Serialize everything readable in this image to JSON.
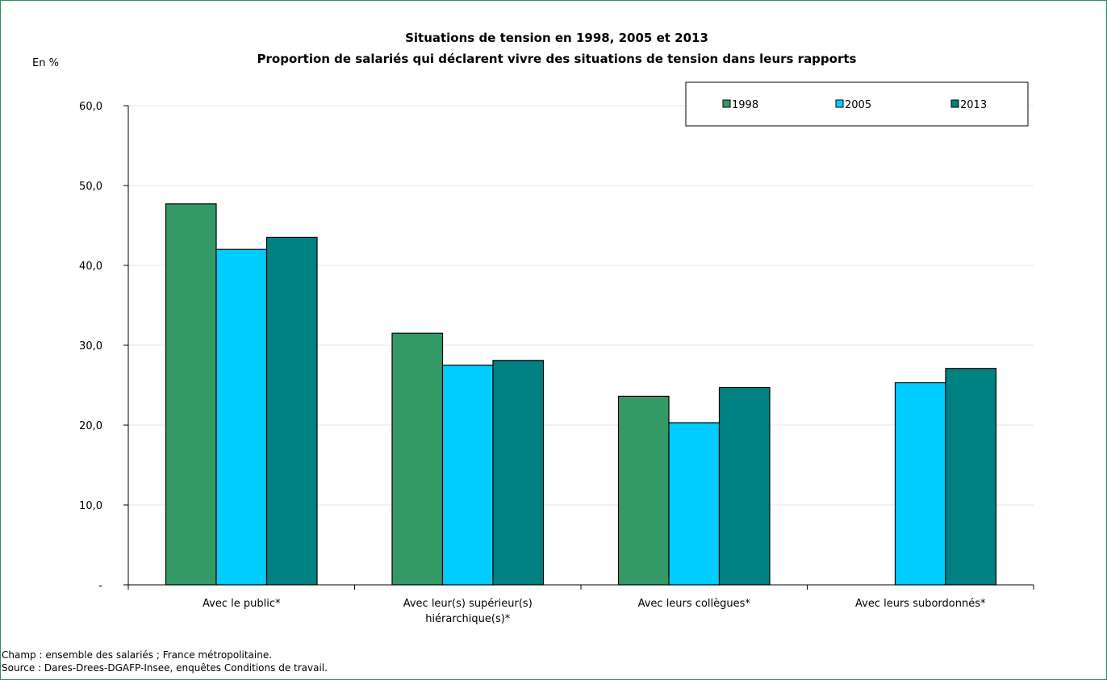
{
  "chart_data": {
    "type": "bar",
    "title": "Situations de tension en 1998, 2005 et 2013",
    "subtitle": "Proportion de salariés qui déclarent vivre des situations de tension dans leurs rapports",
    "ylabel": "En %",
    "ylim": [
      0,
      60
    ],
    "yticks": [
      {
        "value": 0,
        "label": "-"
      },
      {
        "value": 10,
        "label": "10,0"
      },
      {
        "value": 20,
        "label": "20,0"
      },
      {
        "value": 30,
        "label": "30,0"
      },
      {
        "value": 40,
        "label": "40,0"
      },
      {
        "value": 50,
        "label": "50,0"
      },
      {
        "value": 60,
        "label": "60,0"
      }
    ],
    "grid": true,
    "legend_position": "top-right",
    "categories": [
      [
        "Avec le public*"
      ],
      [
        "Avec leur(s) supérieur(s)",
        "hiérarchique(s)*"
      ],
      [
        "Avec leurs collègues*"
      ],
      [
        "Avec leurs subordonnés*"
      ]
    ],
    "series": [
      {
        "name": "1998",
        "color": "#339966",
        "values": [
          47.7,
          31.5,
          23.6,
          null
        ]
      },
      {
        "name": "2005",
        "color": "#00ccff",
        "values": [
          42.0,
          27.5,
          20.3,
          25.3
        ]
      },
      {
        "name": "2013",
        "color": "#008080",
        "values": [
          43.5,
          28.1,
          24.7,
          27.1
        ]
      }
    ]
  },
  "footer": {
    "champ": "Champ : ensemble des salariés ; France métropolitaine.",
    "source": "Source : Dares-Drees-DGAFP-Insee, enquêtes Conditions de travail."
  }
}
